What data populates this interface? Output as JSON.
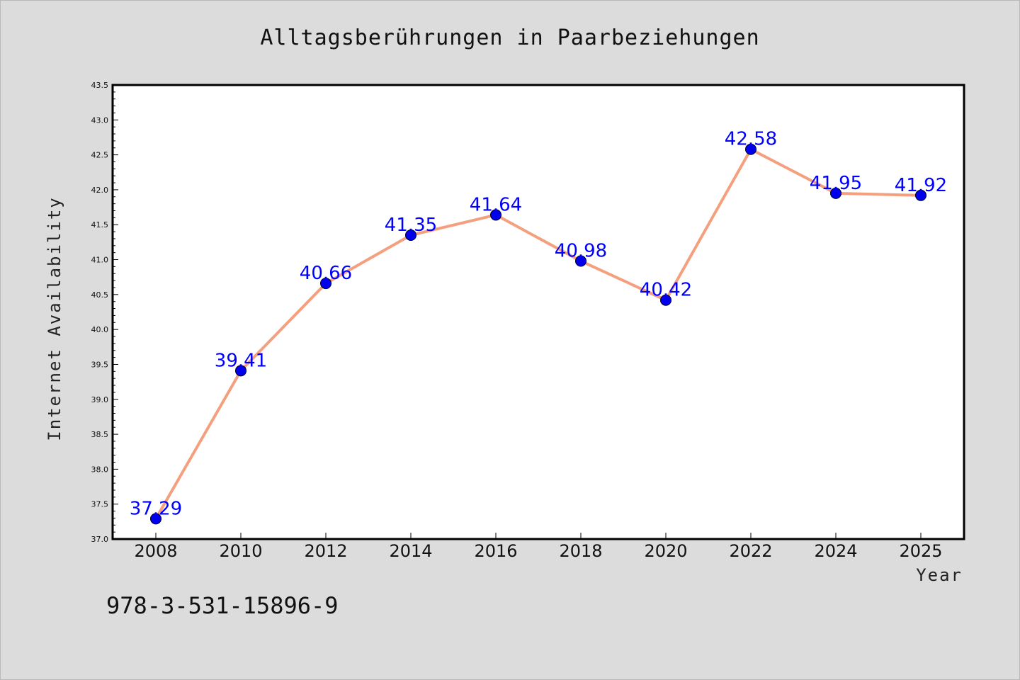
{
  "chart_data": {
    "type": "line",
    "title": "Alltagsberührungen in Paarbeziehungen",
    "xlabel": "Year",
    "ylabel": "Internet Availability",
    "x": [
      "2008",
      "2010",
      "2012",
      "2014",
      "2016",
      "2018",
      "2020",
      "2022",
      "2024",
      "2025"
    ],
    "series": [
      {
        "values": [
          37.29,
          39.41,
          40.66,
          41.35,
          41.64,
          40.98,
          40.42,
          42.58,
          41.95,
          41.92
        ],
        "labels": [
          "37.29",
          "39.41",
          "40.66",
          "41.35",
          "41.64",
          "40.98",
          "40.42",
          "42.58",
          "41.95",
          "41.92"
        ],
        "line_color": "#f4a07e",
        "marker_color": "#0000ee",
        "label_color": "#0000ff"
      }
    ],
    "ylim": [
      37.0,
      43.5
    ],
    "yticks": [
      "37.0",
      "37.5",
      "38.0",
      "38.5",
      "39.0",
      "39.5",
      "40.0",
      "40.5",
      "41.0",
      "41.5",
      "42.0",
      "42.5",
      "43.0",
      "43.5"
    ],
    "grid": false,
    "background": "#dcdcdc",
    "plot_background": "#ffffff"
  },
  "footer": {
    "isbn": "978-3-531-15896-9"
  }
}
